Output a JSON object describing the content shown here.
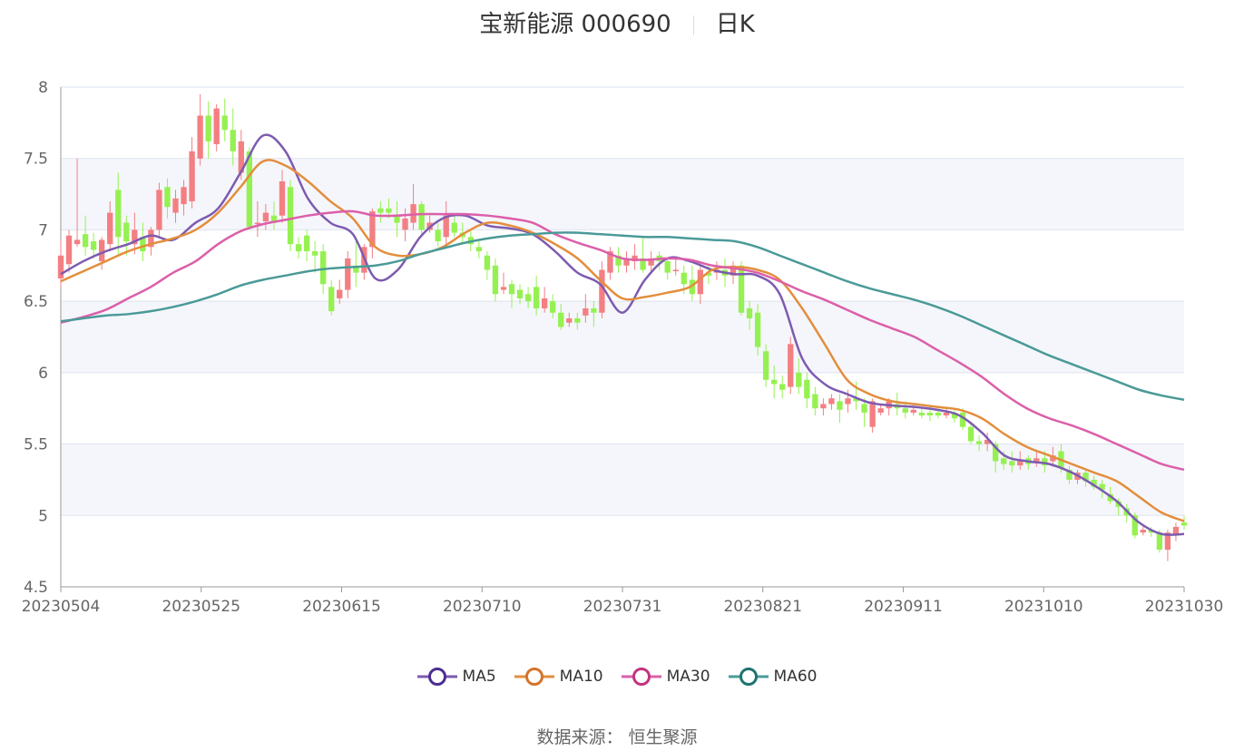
{
  "title": {
    "name": "宝新能源 000690",
    "period": "日K"
  },
  "source": "数据来源： 恒生聚源",
  "colors": {
    "up": "#f37f83",
    "down": "#95f151",
    "grid_band": "#f5f6fb",
    "grid_line": "#dde3ef",
    "axis": "#666666"
  },
  "chart_data": {
    "type": "candlestick",
    "ylim": [
      4.5,
      8
    ],
    "yticks": [
      "4.5",
      "5",
      "5.5",
      "6",
      "6.5",
      "7",
      "7.5",
      "8"
    ],
    "xticks": [
      "20230504",
      "20230525",
      "20230615",
      "20230710",
      "20230731",
      "20230821",
      "20230911",
      "20231010",
      "20231030"
    ],
    "grid": true,
    "legend_position": "bottom",
    "series": [
      {
        "name": "MA5",
        "color": "#7d5bb0",
        "values": [
          6.69,
          6.78,
          6.85,
          6.9,
          6.96,
          6.93,
          7.05,
          7.15,
          7.4,
          7.66,
          7.55,
          7.22,
          7.05,
          6.97,
          6.66,
          6.72,
          6.95,
          7.08,
          7.1,
          7.03,
          7.01,
          6.97,
          6.85,
          6.7,
          6.62,
          6.42,
          6.65,
          6.8,
          6.78,
          6.72,
          6.69,
          6.68,
          6.55,
          6.1,
          5.92,
          5.85,
          5.79,
          5.77,
          5.76,
          5.74,
          5.7,
          5.58,
          5.42,
          5.38,
          5.36,
          5.3,
          5.21,
          5.1,
          4.95,
          4.87,
          4.87
        ]
      },
      {
        "name": "MA10",
        "color": "#e38e3d",
        "values": [
          6.64,
          6.71,
          6.78,
          6.85,
          6.9,
          6.94,
          7.0,
          7.12,
          7.3,
          7.48,
          7.45,
          7.34,
          7.2,
          7.08,
          6.88,
          6.82,
          6.83,
          6.88,
          6.98,
          7.05,
          7.03,
          6.98,
          6.9,
          6.8,
          6.65,
          6.52,
          6.53,
          6.56,
          6.6,
          6.72,
          6.74,
          6.72,
          6.65,
          6.45,
          6.2,
          5.95,
          5.85,
          5.8,
          5.78,
          5.76,
          5.74,
          5.68,
          5.57,
          5.48,
          5.42,
          5.36,
          5.3,
          5.24,
          5.13,
          5.02,
          4.96
        ]
      },
      {
        "name": "MA30",
        "color": "#dc5fa9",
        "values": [
          6.35,
          6.39,
          6.44,
          6.52,
          6.6,
          6.7,
          6.78,
          6.9,
          6.99,
          7.04,
          7.07,
          7.1,
          7.12,
          7.13,
          7.1,
          7.1,
          7.11,
          7.11,
          7.11,
          7.1,
          7.08,
          7.05,
          6.97,
          6.91,
          6.86,
          6.8,
          6.79,
          6.8,
          6.79,
          6.75,
          6.73,
          6.7,
          6.64,
          6.57,
          6.51,
          6.44,
          6.37,
          6.31,
          6.25,
          6.16,
          6.07,
          5.97,
          5.85,
          5.75,
          5.68,
          5.63,
          5.57,
          5.5,
          5.43,
          5.36,
          5.32
        ]
      },
      {
        "name": "MA60",
        "color": "#4a9a98",
        "values": [
          6.36,
          6.38,
          6.4,
          6.41,
          6.43,
          6.46,
          6.5,
          6.55,
          6.61,
          6.65,
          6.68,
          6.71,
          6.73,
          6.74,
          6.75,
          6.78,
          6.83,
          6.87,
          6.91,
          6.94,
          6.96,
          6.97,
          6.98,
          6.98,
          6.97,
          6.96,
          6.95,
          6.95,
          6.94,
          6.93,
          6.92,
          6.88,
          6.82,
          6.76,
          6.7,
          6.64,
          6.59,
          6.55,
          6.51,
          6.46,
          6.4,
          6.33,
          6.26,
          6.19,
          6.12,
          6.06,
          6.0,
          5.94,
          5.88,
          5.84,
          5.81
        ]
      }
    ],
    "candles": [
      [
        6.66,
        6.82,
        6.6,
        6.93
      ],
      [
        6.76,
        6.96,
        6.7,
        7.0
      ],
      [
        6.9,
        6.93,
        6.88,
        7.5
      ],
      [
        6.97,
        6.88,
        6.82,
        7.1
      ],
      [
        6.92,
        6.86,
        6.8,
        6.98
      ],
      [
        6.78,
        6.93,
        6.72,
        6.95
      ],
      [
        6.9,
        7.12,
        6.85,
        7.2
      ],
      [
        7.28,
        6.95,
        6.82,
        7.4
      ],
      [
        7.05,
        6.92,
        6.82,
        7.1
      ],
      [
        6.9,
        7.0,
        6.83,
        7.12
      ],
      [
        6.95,
        6.85,
        6.78,
        7.05
      ],
      [
        6.88,
        7.0,
        6.82,
        7.02
      ],
      [
        7.0,
        7.28,
        6.95,
        7.33
      ],
      [
        7.3,
        7.16,
        7.08,
        7.36
      ],
      [
        7.12,
        7.22,
        7.05,
        7.28
      ],
      [
        7.18,
        7.3,
        7.1,
        7.35
      ],
      [
        7.2,
        7.55,
        7.15,
        7.65
      ],
      [
        7.5,
        7.8,
        7.45,
        7.95
      ],
      [
        7.8,
        7.62,
        7.5,
        7.9
      ],
      [
        7.6,
        7.85,
        7.55,
        7.88
      ],
      [
        7.8,
        7.7,
        7.62,
        7.92
      ],
      [
        7.7,
        7.55,
        7.45,
        7.85
      ],
      [
        7.4,
        7.62,
        7.35,
        7.7
      ],
      [
        7.55,
        7.02,
        7.0,
        7.58
      ],
      [
        7.05,
        7.05,
        6.95,
        7.2
      ],
      [
        7.06,
        7.12,
        7.0,
        7.18
      ],
      [
        7.1,
        7.05,
        7.0,
        7.2
      ],
      [
        7.1,
        7.34,
        7.05,
        7.42
      ],
      [
        7.3,
        6.9,
        6.85,
        7.35
      ],
      [
        6.9,
        6.85,
        6.8,
        6.95
      ],
      [
        6.96,
        6.85,
        6.78,
        7.0
      ],
      [
        6.85,
        6.82,
        6.7,
        6.92
      ],
      [
        6.85,
        6.62,
        6.55,
        6.9
      ],
      [
        6.6,
        6.43,
        6.4,
        6.65
      ],
      [
        6.52,
        6.58,
        6.48,
        6.65
      ],
      [
        6.58,
        6.8,
        6.52,
        6.85
      ],
      [
        6.75,
        6.7,
        6.6,
        6.95
      ],
      [
        6.7,
        6.88,
        6.65,
        6.9
      ],
      [
        6.88,
        7.13,
        6.8,
        7.15
      ],
      [
        7.15,
        7.12,
        7.05,
        7.2
      ],
      [
        7.15,
        7.12,
        7.08,
        7.22
      ],
      [
        7.1,
        7.05,
        6.95,
        7.2
      ],
      [
        7.0,
        7.08,
        6.92,
        7.15
      ],
      [
        7.05,
        7.18,
        7.0,
        7.32
      ],
      [
        7.18,
        7.0,
        6.95,
        7.2
      ],
      [
        7.0,
        7.05,
        6.98,
        7.1
      ],
      [
        7.0,
        6.92,
        6.88,
        7.05
      ],
      [
        6.95,
        7.1,
        6.9,
        7.2
      ],
      [
        7.05,
        6.98,
        6.95,
        7.1
      ],
      [
        6.98,
        6.95,
        6.9,
        7.05
      ],
      [
        6.95,
        6.9,
        6.85,
        7.0
      ],
      [
        6.88,
        6.85,
        6.8,
        6.92
      ],
      [
        6.82,
        6.72,
        6.65,
        6.85
      ],
      [
        6.75,
        6.55,
        6.5,
        6.8
      ],
      [
        6.58,
        6.6,
        6.55,
        6.7
      ],
      [
        6.62,
        6.55,
        6.45,
        6.65
      ],
      [
        6.58,
        6.52,
        6.48,
        6.62
      ],
      [
        6.55,
        6.5,
        6.45,
        6.6
      ],
      [
        6.6,
        6.45,
        6.4,
        6.68
      ],
      [
        6.45,
        6.52,
        6.42,
        6.6
      ],
      [
        6.5,
        6.42,
        6.38,
        6.55
      ],
      [
        6.42,
        6.32,
        6.3,
        6.48
      ],
      [
        6.35,
        6.38,
        6.32,
        6.42
      ],
      [
        6.38,
        6.35,
        6.3,
        6.42
      ],
      [
        6.4,
        6.45,
        6.35,
        6.55
      ],
      [
        6.45,
        6.42,
        6.32,
        6.5
      ],
      [
        6.42,
        6.72,
        6.38,
        6.78
      ],
      [
        6.7,
        6.85,
        6.65,
        6.88
      ],
      [
        6.82,
        6.75,
        6.7,
        6.88
      ],
      [
        6.75,
        6.8,
        6.7,
        6.85
      ],
      [
        6.78,
        6.82,
        6.72,
        6.9
      ],
      [
        6.8,
        6.72,
        6.7,
        6.95
      ],
      [
        6.75,
        6.8,
        6.7,
        6.85
      ],
      [
        6.82,
        6.78,
        6.72,
        6.85
      ],
      [
        6.78,
        6.7,
        6.65,
        6.8
      ],
      [
        6.72,
        6.72,
        6.68,
        6.8
      ],
      [
        6.7,
        6.62,
        6.55,
        6.75
      ],
      [
        6.65,
        6.55,
        6.5,
        6.75
      ],
      [
        6.55,
        6.72,
        6.48,
        6.75
      ],
      [
        6.7,
        6.68,
        6.62,
        6.75
      ],
      [
        6.7,
        6.72,
        6.65,
        6.78
      ],
      [
        6.72,
        6.68,
        6.6,
        6.8
      ],
      [
        6.68,
        6.75,
        6.62,
        6.78
      ],
      [
        6.75,
        6.42,
        6.4,
        6.78
      ],
      [
        6.45,
        6.38,
        6.3,
        6.5
      ],
      [
        6.42,
        6.18,
        6.12,
        6.48
      ],
      [
        6.15,
        5.95,
        5.9,
        6.2
      ],
      [
        5.95,
        5.92,
        5.82,
        6.05
      ],
      [
        5.92,
        5.88,
        5.82,
        5.98
      ],
      [
        5.9,
        6.2,
        5.85,
        6.25
      ],
      [
        6.0,
        5.9,
        5.85,
        6.1
      ],
      [
        5.95,
        5.82,
        5.75,
        6.0
      ],
      [
        5.85,
        5.75,
        5.7,
        5.9
      ],
      [
        5.75,
        5.78,
        5.7,
        5.82
      ],
      [
        5.78,
        5.82,
        5.74,
        5.85
      ],
      [
        5.8,
        5.74,
        5.65,
        5.85
      ],
      [
        5.78,
        5.82,
        5.72,
        5.88
      ],
      [
        5.82,
        5.8,
        5.74,
        5.94
      ],
      [
        5.78,
        5.72,
        5.62,
        5.82
      ],
      [
        5.62,
        5.8,
        5.58,
        5.82
      ],
      [
        5.72,
        5.75,
        5.7,
        5.78
      ],
      [
        5.75,
        5.8,
        5.7,
        5.82
      ],
      [
        5.78,
        5.75,
        5.7,
        5.86
      ],
      [
        5.75,
        5.72,
        5.68,
        5.8
      ],
      [
        5.72,
        5.74,
        5.7,
        5.78
      ],
      [
        5.72,
        5.7,
        5.68,
        5.75
      ],
      [
        5.72,
        5.7,
        5.66,
        5.76
      ],
      [
        5.72,
        5.7,
        5.68,
        5.75
      ],
      [
        5.7,
        5.72,
        5.68,
        5.76
      ],
      [
        5.72,
        5.68,
        5.65,
        5.75
      ],
      [
        5.72,
        5.62,
        5.6,
        5.75
      ],
      [
        5.62,
        5.52,
        5.5,
        5.65
      ],
      [
        5.52,
        5.5,
        5.45,
        5.56
      ],
      [
        5.5,
        5.53,
        5.45,
        5.58
      ],
      [
        5.5,
        5.38,
        5.3,
        5.52
      ],
      [
        5.4,
        5.36,
        5.32,
        5.45
      ],
      [
        5.38,
        5.35,
        5.3,
        5.45
      ],
      [
        5.35,
        5.38,
        5.32,
        5.45
      ],
      [
        5.4,
        5.36,
        5.32,
        5.42
      ],
      [
        5.38,
        5.4,
        5.34,
        5.45
      ],
      [
        5.4,
        5.35,
        5.3,
        5.45
      ],
      [
        5.38,
        5.42,
        5.34,
        5.48
      ],
      [
        5.45,
        5.33,
        5.3,
        5.5
      ],
      [
        5.32,
        5.25,
        5.22,
        5.35
      ],
      [
        5.25,
        5.3,
        5.22,
        5.32
      ],
      [
        5.3,
        5.24,
        5.2,
        5.32
      ],
      [
        5.25,
        5.2,
        5.18,
        5.28
      ],
      [
        5.22,
        5.18,
        5.12,
        5.25
      ],
      [
        5.15,
        5.1,
        5.08,
        5.2
      ],
      [
        5.1,
        5.06,
        5.0,
        5.12
      ],
      [
        5.05,
        5.0,
        4.95,
        5.08
      ],
      [
        5.0,
        4.86,
        4.84,
        5.02
      ],
      [
        4.88,
        4.9,
        4.86,
        4.92
      ],
      [
        4.9,
        4.88,
        4.85,
        4.92
      ],
      [
        4.88,
        4.76,
        4.74,
        4.9
      ],
      [
        4.76,
        4.88,
        4.68,
        4.9
      ],
      [
        4.86,
        4.92,
        4.82,
        4.95
      ],
      [
        4.95,
        4.93,
        4.9,
        5.0
      ]
    ]
  },
  "legend": [
    {
      "label": "MA5",
      "color": "#7d5bb0",
      "dot": "#4b2d8f"
    },
    {
      "label": "MA10",
      "color": "#e38e3d",
      "dot": "#d4742a"
    },
    {
      "label": "MA30",
      "color": "#dc5fa9",
      "dot": "#c2337f"
    },
    {
      "label": "MA60",
      "color": "#4a9a98",
      "dot": "#1e7470"
    }
  ]
}
